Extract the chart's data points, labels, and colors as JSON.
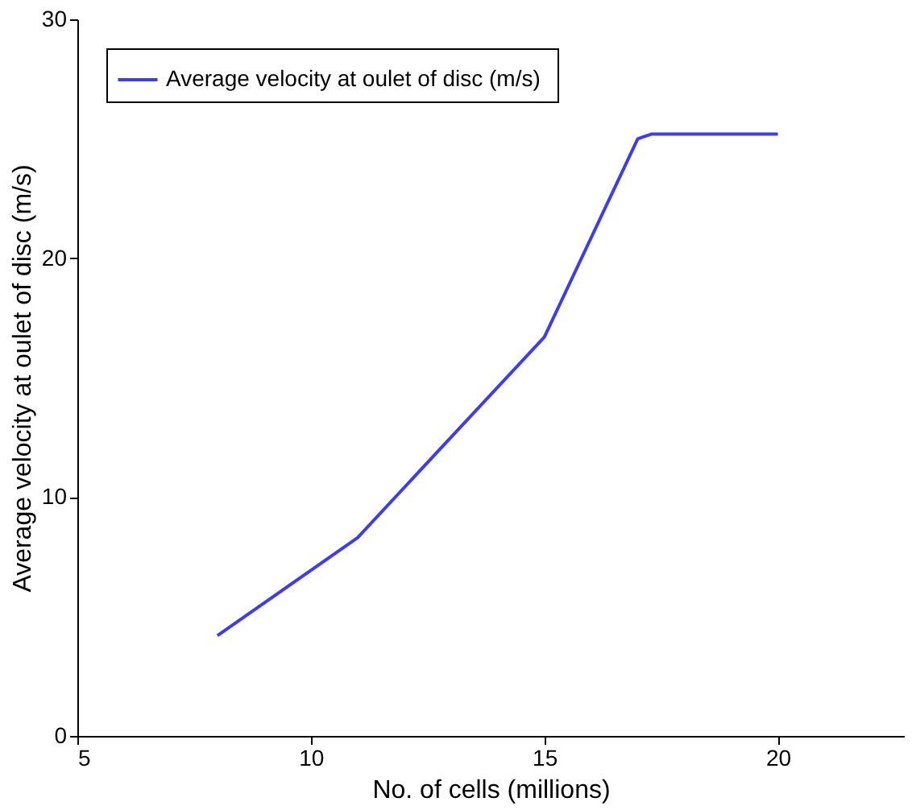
{
  "chart_data": {
    "type": "line",
    "xlabel": "No. of cells (millions)",
    "ylabel": "Average velocity at oulet  of disc (m/s)",
    "x": [
      8,
      11,
      15,
      17,
      17.3,
      20
    ],
    "series": [
      {
        "name": "Average velocity at oulet  of disc (m/s)",
        "color": "#3c3cf0",
        "values": [
          4.2,
          8.3,
          16.7,
          25.0,
          25.2,
          25.2
        ]
      }
    ],
    "xlim": [
      5,
      22.7
    ],
    "xticks": [
      5,
      10,
      15,
      20
    ],
    "ylim": [
      0,
      30
    ],
    "yticks": [
      0,
      10,
      20,
      30
    ],
    "grid": false,
    "legend": "top left",
    "marker": "none",
    "line_style": "solid"
  }
}
